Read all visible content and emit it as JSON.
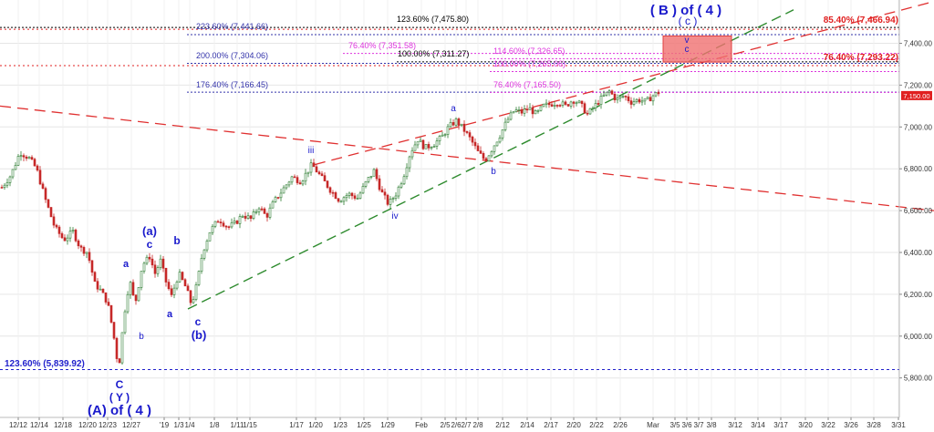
{
  "chart_data": {
    "type": "candlestick",
    "y_axis": {
      "position": "right",
      "ticks": [
        5800,
        6000,
        6200,
        6400,
        6600,
        6800,
        7000,
        7200,
        7400
      ],
      "tick_labels": [
        "5,800.00",
        "6,000.00",
        "6,200.00",
        "6,400.00",
        "6,600.00",
        "6,800.00",
        "7,000.00",
        "7,200.00",
        "7,400.00"
      ],
      "ylim": [
        5746,
        7560
      ],
      "last_price_label": "7,150.00",
      "last_price": 7150
    },
    "x_axis": {
      "tick_labels": [
        "12/12",
        "12/14",
        "12/18",
        "12/20",
        "12/23",
        "12/27",
        "'19",
        "1/3",
        "1/4",
        "1/8",
        "1/11",
        "1/15",
        "1/17",
        "1/20",
        "1/23",
        "1/25",
        "1/29",
        "Feb",
        "2/5",
        "2/6",
        "2/7",
        "2/8",
        "2/12",
        "2/14",
        "2/17",
        "2/20",
        "2/22",
        "2/26",
        "Mar",
        "3/5",
        "3/6",
        "3/7",
        "3/8",
        "3/12",
        "3/14",
        "3/17",
        "3/20",
        "3/22",
        "3/26",
        "3/28",
        "3/31"
      ]
    },
    "price_path": [
      [
        0,
        6700
      ],
      [
        12,
        6770
      ],
      [
        22,
        6880
      ],
      [
        32,
        6850
      ],
      [
        40,
        6800
      ],
      [
        50,
        6650
      ],
      [
        60,
        6520
      ],
      [
        70,
        6460
      ],
      [
        80,
        6500
      ],
      [
        88,
        6420
      ],
      [
        96,
        6400
      ],
      [
        104,
        6250
      ],
      [
        110,
        6220
      ],
      [
        118,
        6160
      ],
      [
        124,
        6020
      ],
      [
        130,
        5840
      ],
      [
        136,
        6100
      ],
      [
        142,
        6270
      ],
      [
        148,
        6150
      ],
      [
        156,
        6340
      ],
      [
        164,
        6380
      ],
      [
        170,
        6300
      ],
      [
        176,
        6360
      ],
      [
        182,
        6260
      ],
      [
        188,
        6190
      ],
      [
        196,
        6300
      ],
      [
        204,
        6230
      ],
      [
        210,
        6150
      ],
      [
        216,
        6250
      ],
      [
        222,
        6400
      ],
      [
        230,
        6500
      ],
      [
        240,
        6560
      ],
      [
        250,
        6520
      ],
      [
        258,
        6540
      ],
      [
        266,
        6580
      ],
      [
        275,
        6560
      ],
      [
        284,
        6620
      ],
      [
        292,
        6570
      ],
      [
        300,
        6640
      ],
      [
        310,
        6700
      ],
      [
        320,
        6760
      ],
      [
        330,
        6740
      ],
      [
        342,
        6820
      ],
      [
        352,
        6760
      ],
      [
        362,
        6700
      ],
      [
        372,
        6650
      ],
      [
        382,
        6680
      ],
      [
        392,
        6660
      ],
      [
        402,
        6740
      ],
      [
        410,
        6790
      ],
      [
        418,
        6690
      ],
      [
        426,
        6630
      ],
      [
        434,
        6680
      ],
      [
        442,
        6760
      ],
      [
        450,
        6880
      ],
      [
        458,
        6940
      ],
      [
        466,
        6900
      ],
      [
        476,
        6920
      ],
      [
        484,
        6950
      ],
      [
        492,
        7000
      ],
      [
        500,
        7030
      ],
      [
        508,
        6990
      ],
      [
        516,
        6940
      ],
      [
        524,
        6880
      ],
      [
        532,
        6840
      ],
      [
        540,
        6900
      ],
      [
        548,
        6960
      ],
      [
        556,
        7030
      ],
      [
        564,
        7080
      ],
      [
        572,
        7070
      ],
      [
        580,
        7090
      ],
      [
        588,
        7060
      ],
      [
        596,
        7100
      ],
      [
        604,
        7110
      ],
      [
        612,
        7120
      ],
      [
        620,
        7100
      ],
      [
        628,
        7130
      ],
      [
        636,
        7110
      ],
      [
        644,
        7060
      ],
      [
        652,
        7100
      ],
      [
        660,
        7140
      ],
      [
        668,
        7170
      ],
      [
        676,
        7130
      ],
      [
        684,
        7150
      ],
      [
        692,
        7120
      ],
      [
        700,
        7130
      ],
      [
        708,
        7120
      ],
      [
        716,
        7150
      ],
      [
        722,
        7165
      ]
    ],
    "horizontal_levels": [
      {
        "label": "223.60% (7,441.66)",
        "value": 7441.66,
        "color": "#3333aa"
      },
      {
        "label": "123.60% (7,475.80)",
        "value": 7475.8,
        "color": "#000000"
      },
      {
        "label": "85.40% (7,466.94)",
        "value": 7466.94,
        "color": "#e02020"
      },
      {
        "label": "76.40% (7,351.58)",
        "value": 7351.58,
        "color": "#dd33dd"
      },
      {
        "label": "114.60% (7,326.65)",
        "value": 7326.65,
        "color": "#dd33dd"
      },
      {
        "label": "200.00% (7,304.06)",
        "value": 7304.06,
        "color": "#3333aa"
      },
      {
        "label": "100.00% (7,311.27)",
        "value": 7311.27,
        "color": "#000000"
      },
      {
        "label": "100.00% (7,265.06)",
        "value": 7265.06,
        "color": "#dd33dd"
      },
      {
        "label": "76.40% (7,293.22)",
        "value": 7293.22,
        "color": "#e02020"
      },
      {
        "label": "176.40% (7,166.45)",
        "value": 7166.45,
        "color": "#3333aa"
      },
      {
        "label": "76.40% (7,165.50)",
        "value": 7165.5,
        "color": "#dd33dd"
      },
      {
        "label": "123.60% (5,839.92)",
        "value": 5839.92,
        "color": "#2222cc"
      }
    ],
    "wave_labels": [
      "( B ) of ( 4 )",
      "( c )",
      "v",
      "c",
      "a",
      "iii",
      "b",
      "iv",
      "(a)",
      "c",
      "b",
      "a",
      "b",
      "a",
      "c",
      "(b)",
      "C",
      "( Y )",
      "(A) of ( 4 )"
    ],
    "colors": {
      "candle_up": "#2e7d32",
      "candle_down": "#c62828",
      "wave_label": "#1a1acc",
      "channel_green": "#2e8b2e",
      "channel_red": "#e03030",
      "target_box": "#f07070"
    }
  }
}
